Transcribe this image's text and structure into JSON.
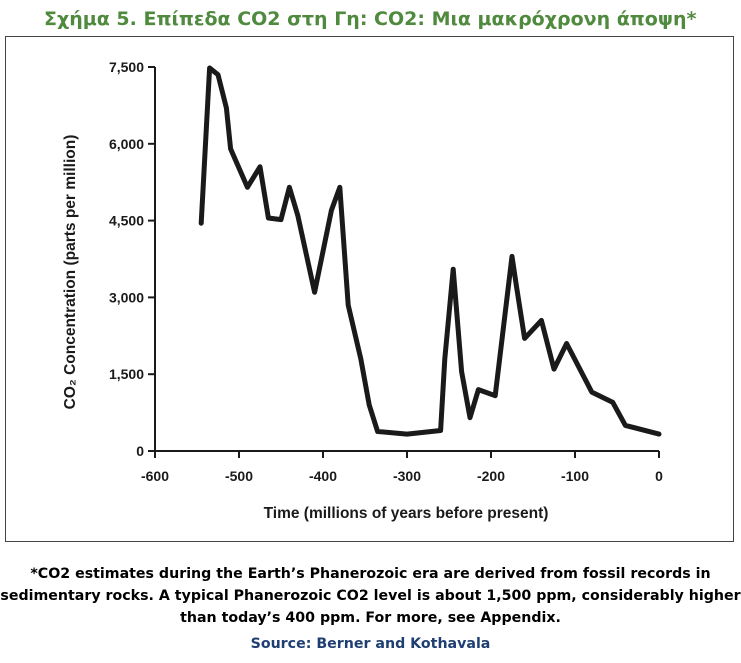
{
  "figure_title": "Σχήμα 5. Επίπεδα CO2 στη Γη: CO2: Μια μακρόχρονη άποψη*",
  "chart_data": {
    "type": "line",
    "title": "",
    "xlabel": "Time (millions of years before present)",
    "ylabel": "CO₂ Concentration (parts per million)",
    "xlim": [
      -600,
      0
    ],
    "ylim": [
      0,
      7500
    ],
    "x_ticks": [
      "-600",
      "-500",
      "-400",
      "-300",
      "-200",
      "-100",
      "0"
    ],
    "y_ticks": [
      "0",
      "1,500",
      "3,000",
      "4,500",
      "6,000",
      "7,500"
    ],
    "grid": false,
    "line_color": "#1a1a1a",
    "series": [
      {
        "x": [
          -545,
          -535,
          -525,
          -515,
          -510,
          -490,
          -475,
          -465,
          -450,
          -440,
          -430,
          -410,
          -390,
          -380,
          -370,
          -355,
          -345,
          -335,
          -300,
          -260,
          -255,
          -245,
          -235,
          -225,
          -215,
          -195,
          -175,
          -170,
          -160,
          -140,
          -125,
          -110,
          -80,
          -55,
          -40,
          0
        ],
        "y": [
          4450,
          7480,
          7350,
          6700,
          5900,
          5150,
          5550,
          4550,
          4520,
          5150,
          4600,
          3100,
          4700,
          5150,
          2850,
          1800,
          900,
          380,
          330,
          400,
          1800,
          3550,
          1550,
          650,
          1200,
          1080,
          3800,
          3250,
          2200,
          2550,
          1600,
          2100,
          1150,
          950,
          500,
          330
        ]
      }
    ]
  },
  "footnote_lines": [
    "*CO2 estimates during the Earth’s Phanerozoic era are derived from fossil records in",
    "sedimentary rocks. A typical Phanerozoic CO2 level is about 1,500 ppm, considerably higher",
    "than today’s 400 ppm. For more, see Appendix."
  ],
  "source": "Source: Berner and Kothavala"
}
